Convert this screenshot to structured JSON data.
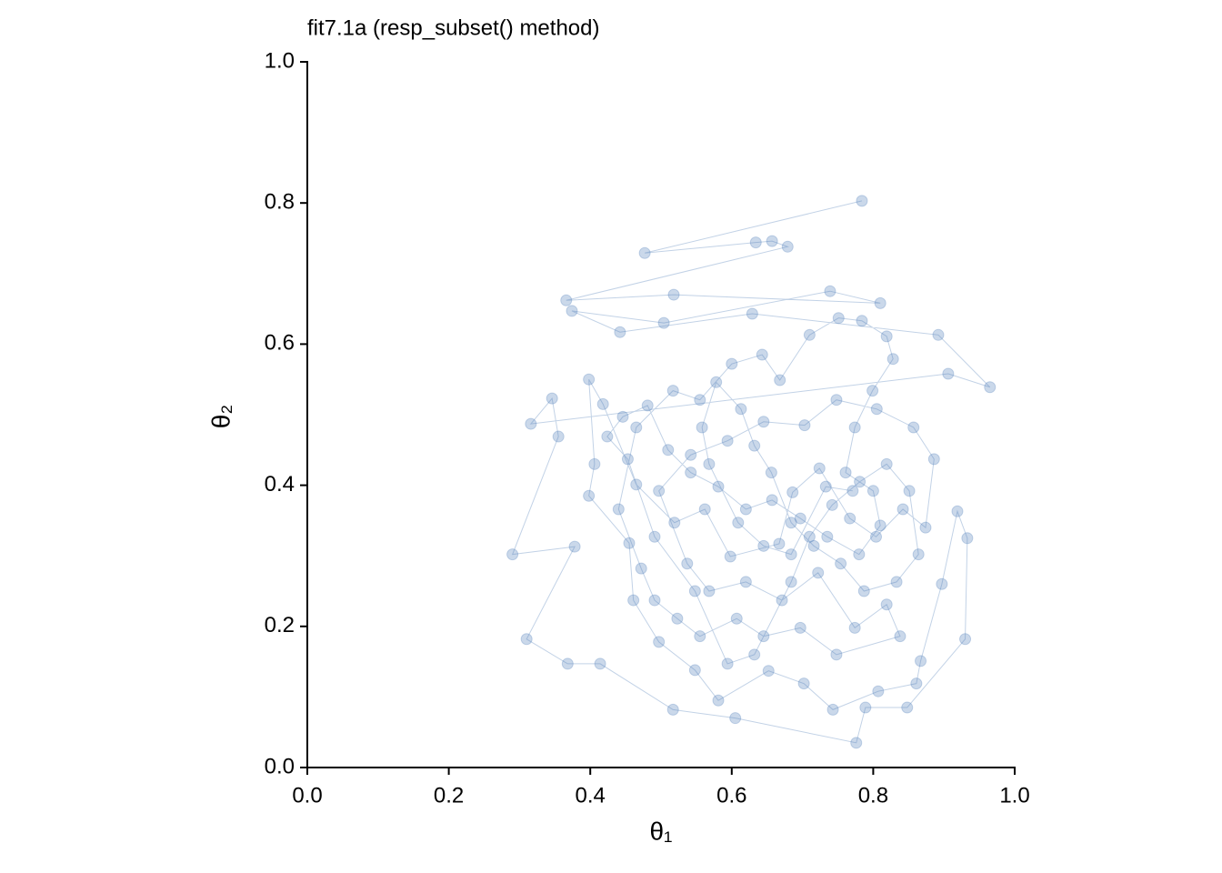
{
  "chart_data": {
    "type": "scatter",
    "title": "fit7.1a (resp_subset() method)",
    "x_label": "θ₁",
    "y_label": "θ₂",
    "connect_points": true,
    "xlim": [
      0,
      1
    ],
    "ylim": [
      0,
      1
    ],
    "xticks": [
      {
        "value": 0,
        "label": "0.0"
      },
      0.2,
      0.4,
      0.6,
      0.8,
      {
        "value": 1,
        "label": "1.0"
      }
    ],
    "yticks": [
      {
        "value": 0,
        "label": "0.0"
      },
      0.2,
      0.4,
      0.6,
      0.8,
      {
        "value": 1,
        "label": "1.0"
      }
    ],
    "series": [
      {
        "color": "#4f7fb8",
        "x": [
          0.784,
          0.477,
          0.634,
          0.657,
          0.679,
          0.366,
          0.518,
          0.81,
          0.739,
          0.504,
          0.374,
          0.442,
          0.629,
          0.892,
          0.965,
          0.906,
          0.316,
          0.346,
          0.355,
          0.29,
          0.378,
          0.31,
          0.368,
          0.414,
          0.517,
          0.605,
          0.776,
          0.789,
          0.848,
          0.93,
          0.933,
          0.919,
          0.897,
          0.867,
          0.861,
          0.807,
          0.743,
          0.702,
          0.652,
          0.581,
          0.548,
          0.497,
          0.461,
          0.455,
          0.398,
          0.406,
          0.398,
          0.418,
          0.465,
          0.519,
          0.562,
          0.598,
          0.667,
          0.686,
          0.724,
          0.767,
          0.804,
          0.842,
          0.874,
          0.886,
          0.857,
          0.805,
          0.748,
          0.703,
          0.645,
          0.594,
          0.542,
          0.497,
          0.537,
          0.568,
          0.62,
          0.671,
          0.722,
          0.774,
          0.819,
          0.838,
          0.748,
          0.697,
          0.645,
          0.607,
          0.555,
          0.523,
          0.491,
          0.472,
          0.44,
          0.465,
          0.517,
          0.555,
          0.6,
          0.643,
          0.668,
          0.71,
          0.751,
          0.784,
          0.819,
          0.828,
          0.799,
          0.774,
          0.761,
          0.8,
          0.81,
          0.78,
          0.735,
          0.697,
          0.657,
          0.62,
          0.581,
          0.542,
          0.51,
          0.481,
          0.446,
          0.424,
          0.453,
          0.491,
          0.548,
          0.594,
          0.632,
          0.684,
          0.71,
          0.742,
          0.781,
          0.819,
          0.851,
          0.864,
          0.833,
          0.787,
          0.754,
          0.716,
          0.684,
          0.656,
          0.632,
          0.613,
          0.578,
          0.558,
          0.568,
          0.609,
          0.645,
          0.684,
          0.733,
          0.771
        ],
        "y": [
          0.803,
          0.729,
          0.744,
          0.746,
          0.738,
          0.662,
          0.67,
          0.658,
          0.675,
          0.63,
          0.647,
          0.617,
          0.643,
          0.613,
          0.539,
          0.558,
          0.487,
          0.523,
          0.469,
          0.302,
          0.313,
          0.182,
          0.147,
          0.147,
          0.082,
          0.07,
          0.035,
          0.085,
          0.085,
          0.182,
          0.325,
          0.363,
          0.26,
          0.151,
          0.119,
          0.108,
          0.082,
          0.119,
          0.137,
          0.095,
          0.138,
          0.178,
          0.237,
          0.318,
          0.385,
          0.43,
          0.55,
          0.515,
          0.401,
          0.347,
          0.366,
          0.299,
          0.317,
          0.39,
          0.424,
          0.353,
          0.327,
          0.366,
          0.34,
          0.437,
          0.482,
          0.508,
          0.521,
          0.485,
          0.49,
          0.463,
          0.443,
          0.392,
          0.289,
          0.25,
          0.263,
          0.237,
          0.276,
          0.198,
          0.231,
          0.186,
          0.16,
          0.198,
          0.186,
          0.211,
          0.186,
          0.211,
          0.237,
          0.282,
          0.366,
          0.482,
          0.534,
          0.521,
          0.572,
          0.585,
          0.549,
          0.613,
          0.637,
          0.633,
          0.611,
          0.579,
          0.534,
          0.482,
          0.418,
          0.392,
          0.343,
          0.302,
          0.327,
          0.353,
          0.379,
          0.366,
          0.398,
          0.418,
          0.45,
          0.513,
          0.497,
          0.469,
          0.437,
          0.327,
          0.25,
          0.147,
          0.16,
          0.263,
          0.327,
          0.372,
          0.405,
          0.43,
          0.392,
          0.302,
          0.263,
          0.25,
          0.289,
          0.314,
          0.347,
          0.418,
          0.456,
          0.508,
          0.546,
          0.482,
          0.43,
          0.347,
          0.314,
          0.302,
          0.398,
          0.392
        ]
      }
    ]
  }
}
